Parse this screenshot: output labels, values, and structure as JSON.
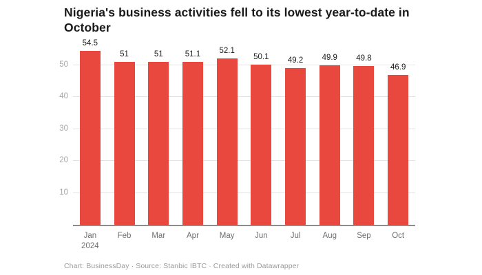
{
  "header": {
    "title": "Nigeria's business activities fell to its lowest year-to-date in October"
  },
  "chart_data": {
    "type": "bar",
    "title": "Nigeria's business activities fell to its lowest year-to-date in October",
    "categories": [
      "Jan",
      "Feb",
      "Mar",
      "Apr",
      "May",
      "Jun",
      "Jul",
      "Aug",
      "Sep",
      "Oct"
    ],
    "x_sub_label": {
      "index": 0,
      "text": "2024"
    },
    "values": [
      54.5,
      51,
      51,
      51.1,
      52.1,
      50.1,
      49.2,
      49.9,
      49.8,
      46.9
    ],
    "value_labels": [
      "54.5",
      "51",
      "51",
      "51.1",
      "52.1",
      "50.1",
      "49.2",
      "49.9",
      "49.8",
      "46.9"
    ],
    "yticks": [
      10,
      20,
      30,
      40,
      50
    ],
    "ylim": [
      0,
      54.7
    ],
    "xlabel": "",
    "ylabel": "",
    "grid": "horizontal",
    "legend": "none"
  },
  "colors": {
    "bar": "#e8483d",
    "title": "#1a1a1a",
    "grid": "#e3e3e3",
    "baseline": "#8b8b8b",
    "ytick": "#a6a6a6",
    "xtick": "#6f6f6f",
    "value_label": "#1c1c1c",
    "footer": "#9b9b9b"
  },
  "footer": {
    "text": "Chart: BusinessDay · Source: Stanbic IBTC · Created with Datawrapper"
  }
}
